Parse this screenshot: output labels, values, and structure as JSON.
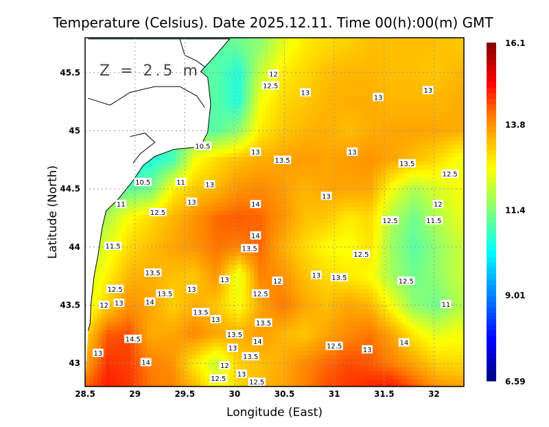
{
  "chart_data": {
    "type": "heatmap",
    "title": "Temperature (Celsius). Date 2025.12.11. Time 00(h):00(m) GMT",
    "xlabel": "Longitude (East)",
    "ylabel": "Latitude (North)",
    "annotation": "Z = 2.5 m",
    "xlim": [
      28.5,
      32.3
    ],
    "ylim": [
      42.8,
      45.8
    ],
    "xticks": [
      28.5,
      29,
      29.5,
      30,
      30.5,
      31,
      31.5,
      32
    ],
    "xtick_labels": [
      "28.5",
      "29",
      "29.5",
      "30",
      "30.5",
      "31",
      "31.5",
      "32"
    ],
    "yticks": [
      43,
      43.5,
      44,
      44.5,
      45,
      45.5
    ],
    "ytick_labels": [
      "43",
      "43.5",
      "44",
      "44.5",
      "45",
      "45.5"
    ],
    "grid": true,
    "colorbar": {
      "min": 6.59,
      "max": 16.1,
      "ticks": [
        16.1,
        13.8,
        11.4,
        9.01,
        6.59
      ],
      "tick_labels": [
        "16.1",
        "13.8",
        "11.4",
        "9.01",
        "6.59"
      ],
      "placement": "right"
    },
    "field": {
      "lon_start": 28.5,
      "lon_step": 0.22,
      "lat_start": 45.75,
      "lat_step": -0.25,
      "values": [
        [
          11,
          11,
          11,
          11,
          11,
          11,
          11,
          11.2,
          11.5,
          12.3,
          12.8,
          13.0,
          13.1,
          13.3,
          13.3,
          13.3,
          13.3,
          13.2
        ],
        [
          11,
          11,
          11,
          11,
          11,
          11,
          11,
          10.5,
          12.0,
          12.8,
          13.0,
          13.3,
          13.4,
          13.4,
          13.3,
          13.3,
          13.2,
          13.4
        ],
        [
          11,
          11,
          11,
          11,
          11,
          11,
          11,
          10.5,
          12.5,
          13.0,
          13.2,
          13.4,
          13.5,
          13.5,
          13.4,
          13.4,
          13.4,
          13.5
        ],
        [
          11,
          11,
          11,
          11,
          11,
          11,
          11,
          11.5,
          12.8,
          13.2,
          13.4,
          13.5,
          13.3,
          13.5,
          13.6,
          13.6,
          13.6,
          13.5
        ],
        [
          11,
          11,
          10.3,
          10.5,
          10.8,
          12.5,
          13.0,
          13.3,
          13.5,
          13.6,
          13.7,
          13.6,
          13.7,
          13.8,
          13.6,
          13.3,
          13.0,
          12.5
        ],
        [
          11,
          11.0,
          11.0,
          11.2,
          12.7,
          13.2,
          13.4,
          13.8,
          13.9,
          13.7,
          13.4,
          13.6,
          13.6,
          13.6,
          12.5,
          11.8,
          12.2,
          12.5
        ],
        [
          11.6,
          11.8,
          12.6,
          13.0,
          13.4,
          13.8,
          14.2,
          14.3,
          14.2,
          13.8,
          13.3,
          13.2,
          12.8,
          13.0,
          11.8,
          11.2,
          11.8,
          12.3
        ],
        [
          11.8,
          12.3,
          13.0,
          13.3,
          13.6,
          13.8,
          14.1,
          14.0,
          14.2,
          13.5,
          13.0,
          12.6,
          12.5,
          12.9,
          11.6,
          11.0,
          11.5,
          12.0
        ],
        [
          12.0,
          12.7,
          13.4,
          13.5,
          13.3,
          13.2,
          13.8,
          12.3,
          14.0,
          13.8,
          13.3,
          13.0,
          12.8,
          12.6,
          11.7,
          11.2,
          11.5,
          12.0
        ],
        [
          12.2,
          13.1,
          13.8,
          13.6,
          13.1,
          13.5,
          13.2,
          12.5,
          13.6,
          14.1,
          13.6,
          13.3,
          13.6,
          13.4,
          12.5,
          11.5,
          11.2,
          11.8
        ],
        [
          13.0,
          14.3,
          14.4,
          13.5,
          13.6,
          13.9,
          13.6,
          13.5,
          13.7,
          13.4,
          13.2,
          13.6,
          13.9,
          14.1,
          13.6,
          12.8,
          12.3,
          12.5
        ],
        [
          13.6,
          14.6,
          14.5,
          14.0,
          13.8,
          12.8,
          12.0,
          13.1,
          13.3,
          13.5,
          13.9,
          14.2,
          14.4,
          14.3,
          14.0,
          13.6,
          13.1,
          13.0
        ],
        [
          14.4,
          14.8,
          14.6,
          14.1,
          14.0,
          13.5,
          12.5,
          13.0,
          13.4,
          13.6,
          14.0,
          14.4,
          14.6,
          14.8,
          15.0,
          14.5,
          14.0,
          13.8
        ]
      ]
    },
    "coastline": [
      [
        28.53,
        45.79
      ],
      [
        29.95,
        45.79
      ],
      [
        29.8,
        45.64
      ],
      [
        29.66,
        45.51
      ],
      [
        29.73,
        45.46
      ],
      [
        29.76,
        45.23
      ],
      [
        29.73,
        44.99
      ],
      [
        29.68,
        44.9
      ],
      [
        29.63,
        44.86
      ],
      [
        29.39,
        44.84
      ],
      [
        29.2,
        44.78
      ],
      [
        29.08,
        44.7
      ],
      [
        28.98,
        44.57
      ],
      [
        28.83,
        44.41
      ],
      [
        28.71,
        44.31
      ],
      [
        28.67,
        44.16
      ],
      [
        28.63,
        43.93
      ],
      [
        28.59,
        43.75
      ],
      [
        28.56,
        43.52
      ],
      [
        28.55,
        43.34
      ],
      [
        28.53,
        43.28
      ]
    ],
    "land_lines": [
      [
        [
          28.53,
          45.28
        ],
        [
          28.75,
          45.22
        ],
        [
          28.95,
          45.33
        ],
        [
          29.2,
          45.38
        ],
        [
          29.45,
          45.38
        ],
        [
          29.62,
          45.3
        ],
        [
          29.7,
          45.2
        ]
      ],
      [
        [
          29.45,
          45.79
        ],
        [
          29.5,
          45.65
        ],
        [
          29.62,
          45.6
        ],
        [
          29.7,
          45.55
        ]
      ],
      [
        [
          28.95,
          44.95
        ],
        [
          29.1,
          44.98
        ],
        [
          29.2,
          44.9
        ],
        [
          29.05,
          44.8
        ],
        [
          28.98,
          44.72
        ]
      ]
    ],
    "contour_labels": [
      {
        "text": "12",
        "lon": 30.39,
        "lat": 45.49
      },
      {
        "text": "12.5",
        "lon": 30.36,
        "lat": 45.39
      },
      {
        "text": "13",
        "lon": 30.71,
        "lat": 45.33
      },
      {
        "text": "13",
        "lon": 31.44,
        "lat": 45.29
      },
      {
        "text": "13",
        "lon": 31.94,
        "lat": 45.35
      },
      {
        "text": "10.5",
        "lon": 29.68,
        "lat": 44.87
      },
      {
        "text": "13",
        "lon": 30.21,
        "lat": 44.82
      },
      {
        "text": "13",
        "lon": 31.18,
        "lat": 44.82
      },
      {
        "text": "13.5",
        "lon": 30.48,
        "lat": 44.75
      },
      {
        "text": "13.5",
        "lon": 31.73,
        "lat": 44.72
      },
      {
        "text": "12.5",
        "lon": 32.16,
        "lat": 44.63
      },
      {
        "text": "10.5",
        "lon": 29.08,
        "lat": 44.56
      },
      {
        "text": "11",
        "lon": 29.46,
        "lat": 44.56
      },
      {
        "text": "13",
        "lon": 29.75,
        "lat": 44.54
      },
      {
        "text": "13",
        "lon": 30.92,
        "lat": 44.44
      },
      {
        "text": "13",
        "lon": 29.57,
        "lat": 44.39
      },
      {
        "text": "11",
        "lon": 28.86,
        "lat": 44.37
      },
      {
        "text": "14",
        "lon": 30.21,
        "lat": 44.37
      },
      {
        "text": "12",
        "lon": 32.04,
        "lat": 44.37
      },
      {
        "text": "12.5",
        "lon": 29.23,
        "lat": 44.3
      },
      {
        "text": "12.5",
        "lon": 31.56,
        "lat": 44.23
      },
      {
        "text": "11.5",
        "lon": 32.0,
        "lat": 44.23
      },
      {
        "text": "14",
        "lon": 30.21,
        "lat": 44.1
      },
      {
        "text": "13.5",
        "lon": 30.15,
        "lat": 43.99
      },
      {
        "text": "11.5",
        "lon": 28.78,
        "lat": 44.01
      },
      {
        "text": "12.5",
        "lon": 31.27,
        "lat": 43.94
      },
      {
        "text": "13.5",
        "lon": 29.18,
        "lat": 43.78
      },
      {
        "text": "12",
        "lon": 30.43,
        "lat": 43.71
      },
      {
        "text": "13",
        "lon": 29.9,
        "lat": 43.72
      },
      {
        "text": "13",
        "lon": 30.82,
        "lat": 43.76
      },
      {
        "text": "13.5",
        "lon": 31.05,
        "lat": 43.74
      },
      {
        "text": "12.5",
        "lon": 31.72,
        "lat": 43.71
      },
      {
        "text": "12.5",
        "lon": 28.8,
        "lat": 43.64
      },
      {
        "text": "12.5",
        "lon": 30.26,
        "lat": 43.6
      },
      {
        "text": "12",
        "lon": 28.69,
        "lat": 43.58
      },
      {
        "text": "13",
        "lon": 28.84,
        "lat": 43.52
      },
      {
        "text": "13.5",
        "lon": 29.3,
        "lat": 43.6
      },
      {
        "text": "13",
        "lon": 29.57,
        "lat": 43.64
      },
      {
        "text": "14",
        "lon": 29.15,
        "lat": 43.53
      },
      {
        "text": "11",
        "lon": 32.12,
        "lat": 43.51
      },
      {
        "text": "13.5",
        "lon": 29.66,
        "lat": 43.44
      },
      {
        "text": "13",
        "lon": 29.81,
        "lat": 43.38
      },
      {
        "text": "13.5",
        "lon": 30.29,
        "lat": 43.35
      },
      {
        "text": "13.5",
        "lon": 30.0,
        "lat": 43.25
      },
      {
        "text": "13",
        "lon": 29.98,
        "lat": 43.21
      },
      {
        "text": "14",
        "lon": 30.23,
        "lat": 43.19
      },
      {
        "text": "14.5",
        "lon": 28.98,
        "lat": 43.21
      },
      {
        "text": "12.5",
        "lon": 31.0,
        "lat": 43.15
      },
      {
        "text": "13",
        "lon": 31.33,
        "lat": 43.12
      },
      {
        "text": "14",
        "lon": 31.7,
        "lat": 43.18
      },
      {
        "text": "13.5",
        "lon": 30.16,
        "lat": 43.06
      },
      {
        "text": "13",
        "lon": 28.63,
        "lat": 43.09
      },
      {
        "text": "14",
        "lon": 29.11,
        "lat": 43.01
      },
      {
        "text": "13",
        "lon": 30.07,
        "lat": 42.91
      },
      {
        "text": "12.5",
        "lon": 30.03,
        "lat": 42.87
      },
      {
        "text": "12",
        "lon": 29.9,
        "lat": 42.83
      },
      {
        "text": "12.5",
        "lon": 30.03,
        "lat": 42.815
      }
    ]
  }
}
